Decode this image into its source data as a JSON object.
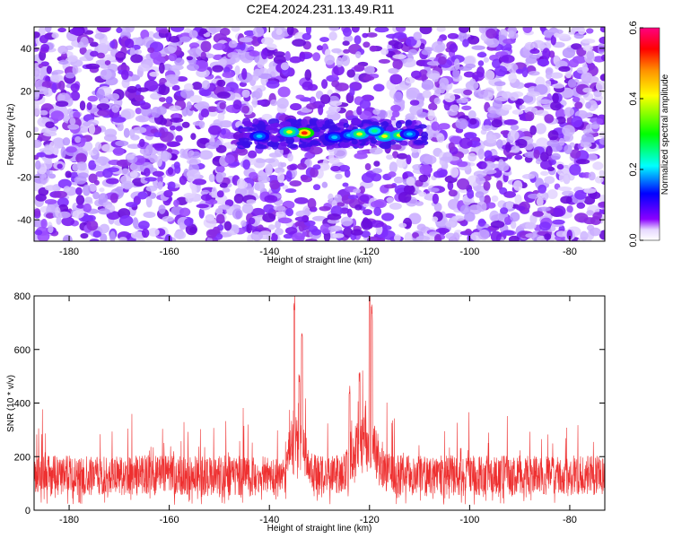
{
  "figure_title": "C2E4.2024.231.13.49.R11",
  "chart_data": [
    {
      "type": "heatmap",
      "xlabel": "Height of straight line (km)",
      "ylabel": "Frequency (Hz)",
      "xlim": [
        -187,
        -73
      ],
      "ylim": [
        -50,
        50
      ],
      "x_ticks": [
        -180,
        -160,
        -140,
        -120,
        -100,
        -80
      ],
      "y_ticks": [
        -40,
        -20,
        0,
        20,
        40
      ],
      "colorbar": {
        "label": "Normalized spectral amplitude",
        "range": [
          0,
          0.6
        ],
        "ticks": [
          0.0,
          0.2,
          0.4,
          0.6
        ],
        "colors": [
          "#ffffff",
          "#dcc8ff",
          "#7a00ff",
          "#0000ff",
          "#00ffff",
          "#00ff00",
          "#ffff00",
          "#ff8000",
          "#ff0000",
          "#ff0080"
        ]
      },
      "hotspots": [
        {
          "x": -133,
          "y": 0.5,
          "value": 0.45
        },
        {
          "x": -136,
          "y": 1.0,
          "value": 0.28
        },
        {
          "x": -142,
          "y": -1.0,
          "value": 0.18
        },
        {
          "x": -127,
          "y": -1.5,
          "value": 0.16
        },
        {
          "x": -124,
          "y": -0.5,
          "value": 0.18
        },
        {
          "x": -122,
          "y": 0.0,
          "value": 0.32
        },
        {
          "x": -117,
          "y": -1.0,
          "value": 0.42
        },
        {
          "x": -119,
          "y": 1.5,
          "value": 0.26
        },
        {
          "x": -114,
          "y": -0.5,
          "value": 0.3
        },
        {
          "x": -112,
          "y": 0.0,
          "value": 0.18
        }
      ],
      "grid": false
    },
    {
      "type": "line",
      "xlabel": "Height of straight line (km)",
      "ylabel": "SNR (10 * v/v)",
      "xlim": [
        -187,
        -73
      ],
      "ylim": [
        0,
        800
      ],
      "x_ticks": [
        -180,
        -160,
        -140,
        -120,
        -100,
        -80
      ],
      "y_ticks": [
        0,
        200,
        400,
        600,
        800
      ],
      "series": [
        {
          "color": "#ee3030",
          "baseline": 130,
          "noise_upper": 260,
          "peaks": [
            {
              "x": -135,
              "value": 830
            },
            {
              "x": -134,
              "value": 520
            },
            {
              "x": -133.5,
              "value": 690
            },
            {
              "x": -120,
              "value": 830
            },
            {
              "x": -119.5,
              "value": 780
            },
            {
              "x": -122,
              "value": 530
            },
            {
              "x": -124,
              "value": 470
            }
          ]
        }
      ],
      "grid": false
    }
  ]
}
